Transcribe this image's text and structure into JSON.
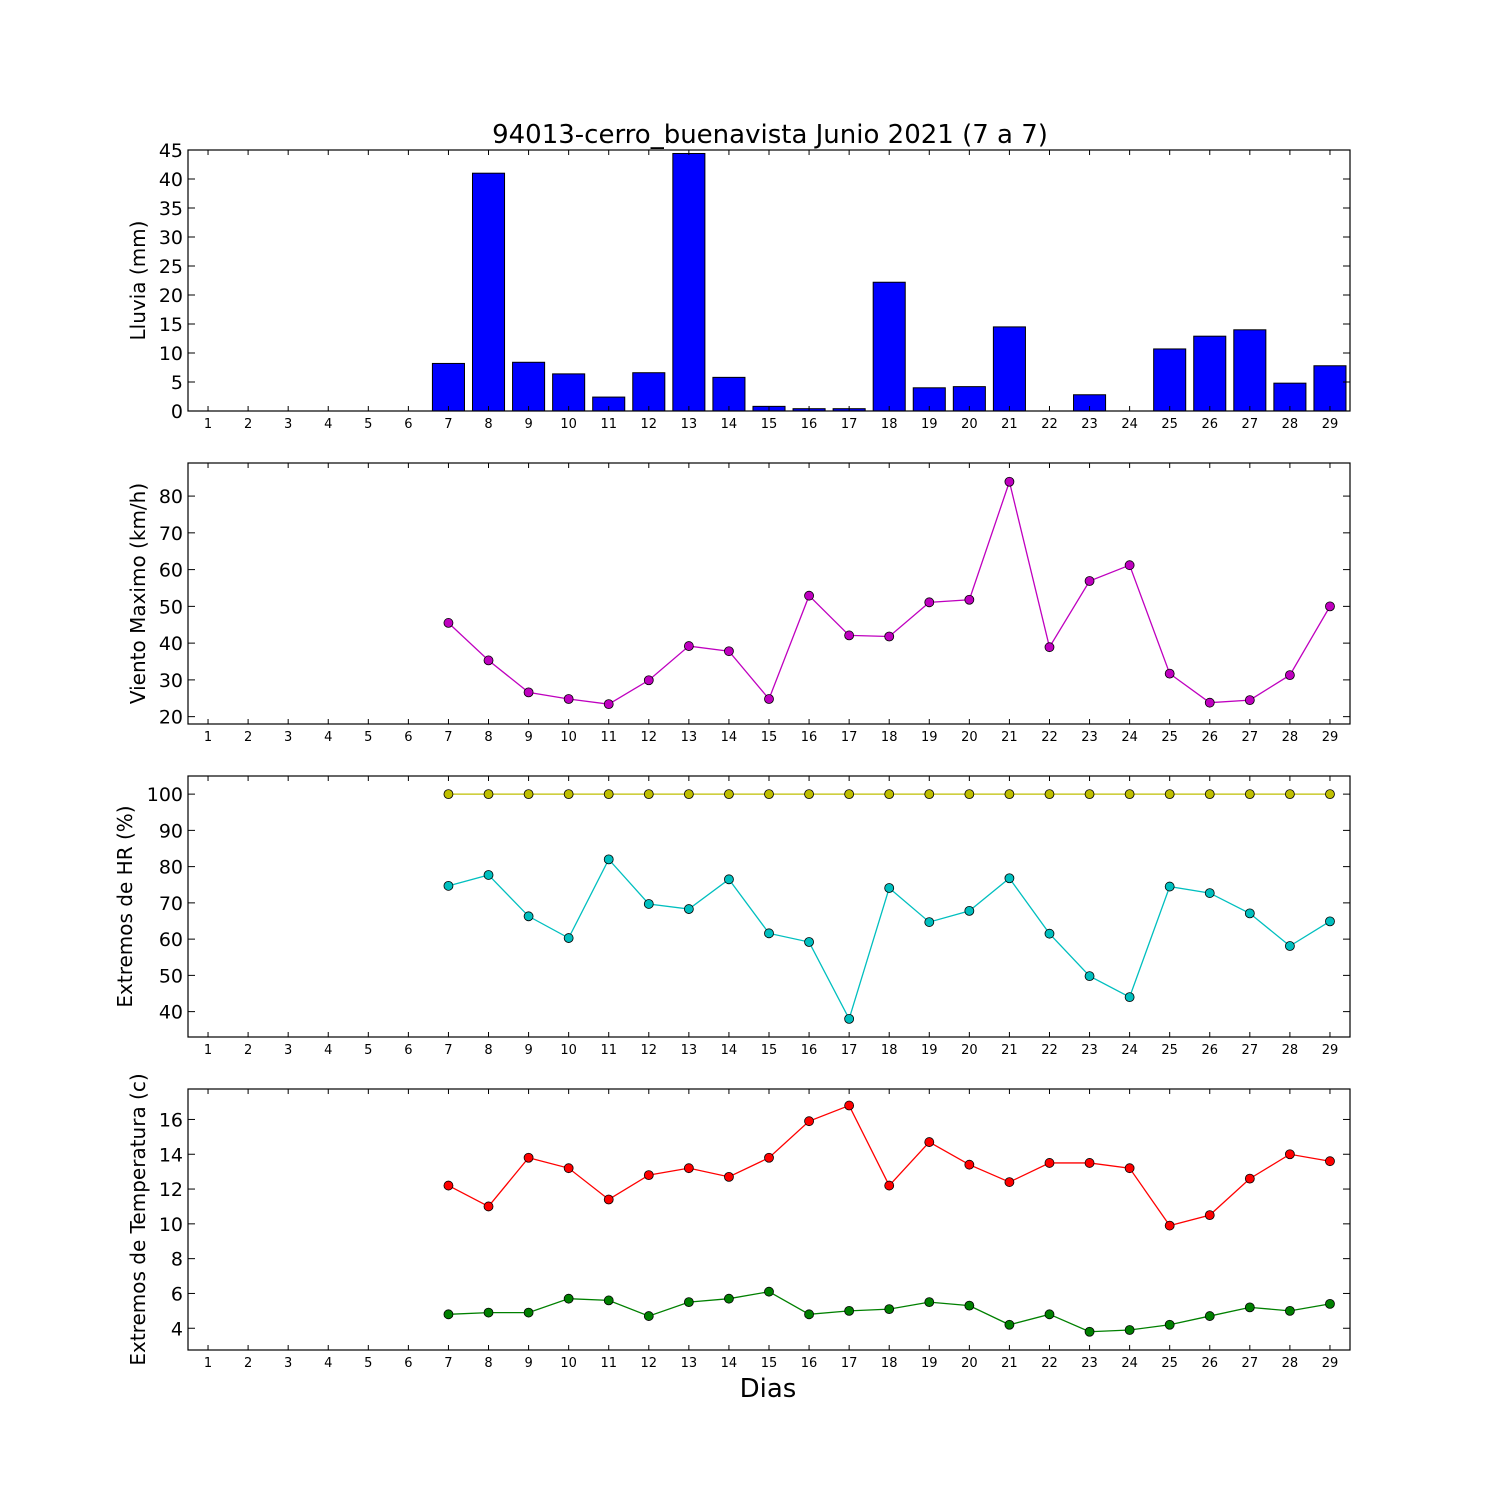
{
  "title": "94013-cerro_buenavista Junio 2021  (7 a 7)",
  "xlabel": "Dias",
  "chart_data": [
    {
      "type": "bar",
      "ylabel": "Lluvia (mm)",
      "x": [
        1,
        2,
        3,
        4,
        5,
        6,
        7,
        8,
        9,
        10,
        11,
        12,
        13,
        14,
        15,
        16,
        17,
        18,
        19,
        20,
        21,
        22,
        23,
        24,
        25,
        26,
        27,
        28,
        29
      ],
      "xlim": [
        0.5,
        29.5
      ],
      "ylim": [
        0,
        45
      ],
      "yticks": [
        0,
        5,
        10,
        15,
        20,
        25,
        30,
        35,
        40,
        45
      ],
      "series": [
        {
          "color": "#0000ff",
          "values": [
            0,
            0,
            0,
            0,
            0,
            0,
            8.2,
            41.0,
            8.4,
            6.4,
            2.4,
            6.6,
            44.4,
            5.8,
            0.8,
            0.4,
            0.4,
            22.2,
            4.0,
            4.2,
            14.5,
            0,
            2.8,
            0,
            10.7,
            12.9,
            14.0,
            4.8,
            7.8
          ]
        }
      ]
    },
    {
      "type": "line",
      "ylabel": "Viento Maximo (km/h)",
      "x": [
        1,
        2,
        3,
        4,
        5,
        6,
        7,
        8,
        9,
        10,
        11,
        12,
        13,
        14,
        15,
        16,
        17,
        18,
        19,
        20,
        21,
        22,
        23,
        24,
        25,
        26,
        27,
        28,
        29
      ],
      "xlim": [
        0.5,
        29.5
      ],
      "ylim": [
        18,
        89
      ],
      "yticks": [
        20,
        30,
        40,
        50,
        60,
        70,
        80
      ],
      "series": [
        {
          "color": "#bf00bf",
          "values": [
            null,
            null,
            null,
            null,
            null,
            null,
            45.5,
            35.3,
            26.6,
            24.8,
            23.4,
            29.9,
            39.2,
            37.8,
            24.8,
            52.9,
            42.1,
            41.8,
            51.1,
            51.8,
            83.9,
            38.9,
            56.9,
            61.2,
            31.7,
            23.8,
            24.5,
            31.3,
            50.0
          ]
        }
      ]
    },
    {
      "type": "line",
      "ylabel": "Extremos de HR (%)",
      "x": [
        1,
        2,
        3,
        4,
        5,
        6,
        7,
        8,
        9,
        10,
        11,
        12,
        13,
        14,
        15,
        16,
        17,
        18,
        19,
        20,
        21,
        22,
        23,
        24,
        25,
        26,
        27,
        28,
        29
      ],
      "xlim": [
        0.5,
        29.5
      ],
      "ylim": [
        33,
        105
      ],
      "yticks": [
        40,
        50,
        60,
        70,
        80,
        90,
        100
      ],
      "series": [
        {
          "color": "#bfbf00",
          "values": [
            null,
            null,
            null,
            null,
            null,
            null,
            100,
            100,
            100,
            100,
            100,
            100,
            100,
            100,
            100,
            100,
            100,
            100,
            100,
            100,
            100,
            100,
            100,
            100,
            100,
            100,
            100,
            100,
            100
          ]
        },
        {
          "color": "#00bfbf",
          "values": [
            null,
            null,
            null,
            null,
            null,
            null,
            74.7,
            77.7,
            66.3,
            60.3,
            82.0,
            69.7,
            68.3,
            76.5,
            61.6,
            59.2,
            38.0,
            74.1,
            64.7,
            67.8,
            76.8,
            61.5,
            49.8,
            44.0,
            74.5,
            72.7,
            67.1,
            58.1,
            64.9
          ]
        }
      ]
    },
    {
      "type": "line",
      "ylabel": "Extremos de Temperatura (c)",
      "x": [
        1,
        2,
        3,
        4,
        5,
        6,
        7,
        8,
        9,
        10,
        11,
        12,
        13,
        14,
        15,
        16,
        17,
        18,
        19,
        20,
        21,
        22,
        23,
        24,
        25,
        26,
        27,
        28,
        29
      ],
      "xlim": [
        0.5,
        29.5
      ],
      "ylim": [
        2.75,
        17.75
      ],
      "yticks": [
        4,
        6,
        8,
        10,
        12,
        14,
        16
      ],
      "series": [
        {
          "color": "#ff0000",
          "values": [
            null,
            null,
            null,
            null,
            null,
            null,
            12.2,
            11.0,
            13.8,
            13.2,
            11.4,
            12.8,
            13.2,
            12.7,
            13.8,
            15.9,
            16.8,
            12.2,
            14.7,
            13.4,
            12.4,
            13.5,
            13.5,
            13.2,
            9.9,
            10.5,
            12.6,
            14.0,
            13.6
          ]
        },
        {
          "color": "#008000",
          "values": [
            null,
            null,
            null,
            null,
            null,
            null,
            4.8,
            4.9,
            4.9,
            5.7,
            5.6,
            4.7,
            5.5,
            5.7,
            6.1,
            4.8,
            5.0,
            5.1,
            5.5,
            5.3,
            4.2,
            4.8,
            3.8,
            3.9,
            4.2,
            4.7,
            5.2,
            5.0,
            5.4
          ]
        }
      ]
    }
  ]
}
